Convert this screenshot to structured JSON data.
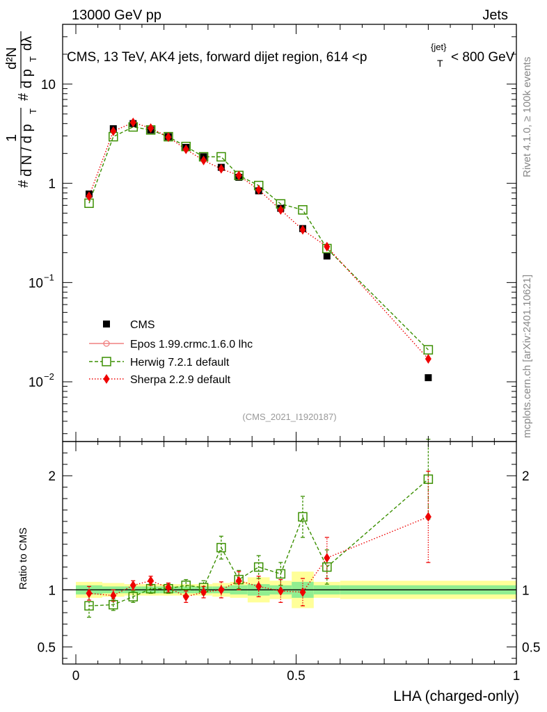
{
  "header": {
    "energy_label": "13000 GeV pp",
    "category_label": "Jets",
    "title_main": "CMS, 13 TeV, AK4 jets, forward dijet region, 614 <p",
    "title_sub": "T",
    "title_sup": "{jet}",
    "title_end": "< 800 GeV"
  },
  "side_labels": {
    "rivet": "Rivet 4.1.0, ≥ 100k events",
    "mcplots": "mcplots.cern.ch [arXiv:2401.10621]"
  },
  "analysis_tag": "(CMS_2021_I1920187)",
  "y_axis_title": {
    "n1": "#",
    "one": "1",
    "dn": "d N / d p",
    "dn_sub": "T",
    "n2": "#",
    "d2n": "d²N",
    "dpt": "d p",
    "dpt_sub": "T",
    "dlambda": "dλ"
  },
  "ratio_axis_title": "Ratio to CMS",
  "x_axis_title": "LHA (charged-only)",
  "colors": {
    "cms": "#000000",
    "epos": "#f08080",
    "herwig": "#3a8f00",
    "sherpa": "#ee0000",
    "band_inner": "#90ee90",
    "band_outer": "#ffff99"
  },
  "chart_data": {
    "type": "scatter",
    "main_panel": {
      "y_scale": "log",
      "ylim": [
        0.0025,
        40
      ],
      "y_ticks": [
        {
          "value": 0.01,
          "base": "10",
          "exp": "−2"
        },
        {
          "value": 0.1,
          "base": "10",
          "exp": "−1"
        },
        {
          "value": 1,
          "base": "1",
          "exp": ""
        },
        {
          "value": 10,
          "base": "10",
          "exp": ""
        }
      ]
    },
    "ratio_panel": {
      "ylim": [
        0.35,
        2.3
      ],
      "y_ticks": [
        {
          "value": 0.5,
          "label": "0.5"
        },
        {
          "value": 1,
          "label": "1"
        },
        {
          "value": 2,
          "label": "2"
        }
      ],
      "reference_line": 1
    },
    "xlim": [
      -0.03,
      1.0
    ],
    "x_ticks": [
      {
        "value": 0,
        "label": "0"
      },
      {
        "value": 0.5,
        "label": "0.5"
      },
      {
        "value": 1,
        "label": "1"
      }
    ],
    "bins": [
      {
        "lo": 0.0,
        "hi": 0.06,
        "x": 0.03
      },
      {
        "lo": 0.06,
        "hi": 0.11,
        "x": 0.085
      },
      {
        "lo": 0.11,
        "hi": 0.15,
        "x": 0.13
      },
      {
        "lo": 0.15,
        "hi": 0.19,
        "x": 0.17
      },
      {
        "lo": 0.19,
        "hi": 0.23,
        "x": 0.21
      },
      {
        "lo": 0.23,
        "hi": 0.27,
        "x": 0.25
      },
      {
        "lo": 0.27,
        "hi": 0.31,
        "x": 0.29
      },
      {
        "lo": 0.31,
        "hi": 0.35,
        "x": 0.33
      },
      {
        "lo": 0.35,
        "hi": 0.39,
        "x": 0.37
      },
      {
        "lo": 0.39,
        "hi": 0.44,
        "x": 0.415
      },
      {
        "lo": 0.44,
        "hi": 0.49,
        "x": 0.465
      },
      {
        "lo": 0.49,
        "hi": 0.54,
        "x": 0.515
      },
      {
        "lo": 0.54,
        "hi": 0.6,
        "x": 0.57
      },
      {
        "lo": 0.6,
        "hi": 1.0,
        "x": 0.8
      }
    ],
    "bands": {
      "inner": [
        0.04,
        0.03,
        0.03,
        0.03,
        0.03,
        0.03,
        0.03,
        0.03,
        0.04,
        0.05,
        0.04,
        0.07,
        0.04,
        0.04
      ],
      "outer": [
        0.07,
        0.06,
        0.05,
        0.05,
        0.05,
        0.05,
        0.05,
        0.06,
        0.07,
        0.11,
        0.08,
        0.16,
        0.07,
        0.08
      ]
    },
    "series": [
      {
        "name": "CMS",
        "legend": "CMS",
        "marker": "square-filled",
        "values": [
          0.78,
          3.55,
          4.0,
          3.45,
          2.95,
          2.3,
          1.85,
          1.45,
          1.15,
          0.84,
          0.56,
          0.35,
          0.185,
          0.011
        ]
      },
      {
        "name": "Epos",
        "legend": "Epos 1.99.crmc.1.6.0 lhc",
        "marker": "open-circle",
        "values": []
      },
      {
        "name": "Herwig",
        "legend": "Herwig 7.2.1 default",
        "marker": "open-square",
        "values": [
          0.63,
          2.95,
          3.7,
          3.45,
          2.95,
          2.35,
          1.85,
          1.85,
          1.2,
          0.95,
          0.62,
          0.54,
          0.22,
          0.021
        ],
        "ratio": [
          0.86,
          0.87,
          0.94,
          1.01,
          1.01,
          1.04,
          1.02,
          1.37,
          1.09,
          1.2,
          1.14,
          1.64,
          1.2,
          1.97
        ],
        "ratio_err": [
          0.1,
          0.05,
          0.05,
          0.04,
          0.04,
          0.05,
          0.06,
          0.1,
          0.08,
          0.1,
          0.1,
          0.18,
          0.15,
          0.35
        ]
      },
      {
        "name": "Sherpa",
        "legend": "Sherpa 2.2.9 default",
        "marker": "diamond-filled",
        "values": [
          0.74,
          3.35,
          4.1,
          3.6,
          2.92,
          2.2,
          1.7,
          1.4,
          1.2,
          0.86,
          0.54,
          0.34,
          0.23,
          0.017
        ],
        "ratio": [
          0.97,
          0.95,
          1.04,
          1.08,
          1.02,
          0.94,
          0.98,
          1.0,
          1.08,
          1.03,
          0.99,
          0.98,
          1.28,
          1.64
        ],
        "ratio_err": [
          0.06,
          0.05,
          0.04,
          0.04,
          0.04,
          0.05,
          0.05,
          0.07,
          0.08,
          0.09,
          0.1,
          0.12,
          0.18,
          0.4
        ]
      }
    ]
  }
}
